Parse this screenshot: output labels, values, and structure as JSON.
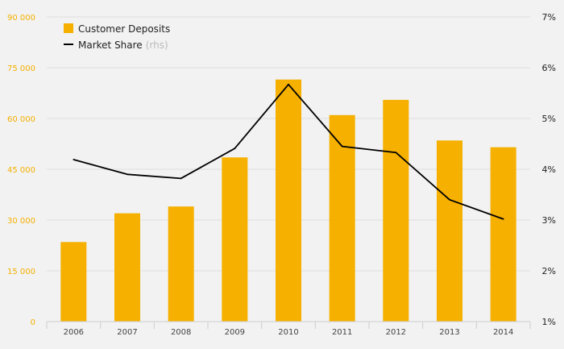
{
  "chart_data": {
    "type": "bar",
    "categories": [
      "2006",
      "2007",
      "2008",
      "2009",
      "2010",
      "2011",
      "2012",
      "2013",
      "2014"
    ],
    "series": [
      {
        "name": "Customer Deposits",
        "type": "bar",
        "axis": "left",
        "color": "#f5b000",
        "values": [
          23500,
          32000,
          34000,
          48500,
          71500,
          61000,
          65500,
          53500,
          51500
        ]
      },
      {
        "name": "Market Share",
        "legend_note": "(rhs)",
        "type": "line",
        "axis": "right",
        "color": "#000000",
        "values": [
          4.19,
          3.9,
          3.82,
          4.41,
          5.67,
          4.45,
          4.33,
          3.4,
          3.02
        ]
      }
    ],
    "y_left": {
      "ylim": [
        0,
        90000
      ],
      "ticks": [
        0,
        15000,
        30000,
        45000,
        60000,
        75000,
        90000
      ],
      "tick_labels": [
        "0",
        "15 000",
        "30 000",
        "45 000",
        "60 000",
        "75 000",
        "90 000"
      ]
    },
    "y_right": {
      "ylim": [
        1,
        7
      ],
      "ticks": [
        1,
        2,
        3,
        4,
        5,
        6,
        7
      ],
      "tick_labels": [
        "1%",
        "2%",
        "3%",
        "4%",
        "5%",
        "6%",
        "7%"
      ]
    },
    "grid": true,
    "legend_position": "top-left"
  }
}
